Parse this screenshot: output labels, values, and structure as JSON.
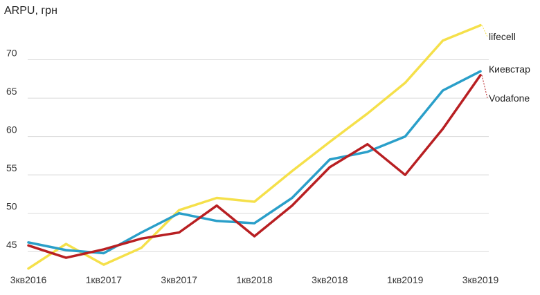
{
  "chart_data": {
    "type": "line",
    "ylabel": "ARPU, грн",
    "ylim": [
      42.5,
      75
    ],
    "yticks": [
      45,
      50,
      55,
      60,
      65,
      70
    ],
    "grid": "horizontal",
    "x": [
      "3кв2016",
      "4кв2016",
      "1кв2017",
      "2кв2017",
      "3кв2017",
      "4кв2017",
      "1кв2018",
      "2кв2018",
      "3кв2018",
      "4кв2018",
      "1кв2019",
      "2кв2019",
      "3кв2019"
    ],
    "xtick_labels": [
      "3кв2016",
      "1кв2017",
      "3кв2017",
      "1кв2018",
      "3кв2018",
      "1кв2019",
      "3кв2019"
    ],
    "series": [
      {
        "name": "lifecell",
        "color": "#f5e04a",
        "values": [
          42.8,
          46.0,
          43.3,
          45.5,
          50.4,
          52.0,
          51.5,
          55.5,
          59.3,
          63.0,
          67.0,
          72.5,
          74.5
        ]
      },
      {
        "name": "Киевстар",
        "color": "#2a9fc9",
        "values": [
          46.2,
          45.2,
          44.8,
          47.5,
          50.0,
          49.0,
          48.7,
          52.0,
          57.0,
          58.0,
          60.0,
          66.0,
          68.5
        ]
      },
      {
        "name": "Vodafone",
        "color": "#b81f22",
        "values": [
          45.8,
          44.2,
          45.3,
          46.7,
          47.5,
          51.0,
          47.0,
          51.0,
          56.0,
          59.0,
          55.0,
          61.0,
          68.0
        ]
      }
    ],
    "legend": "end-of-line labels, right"
  }
}
